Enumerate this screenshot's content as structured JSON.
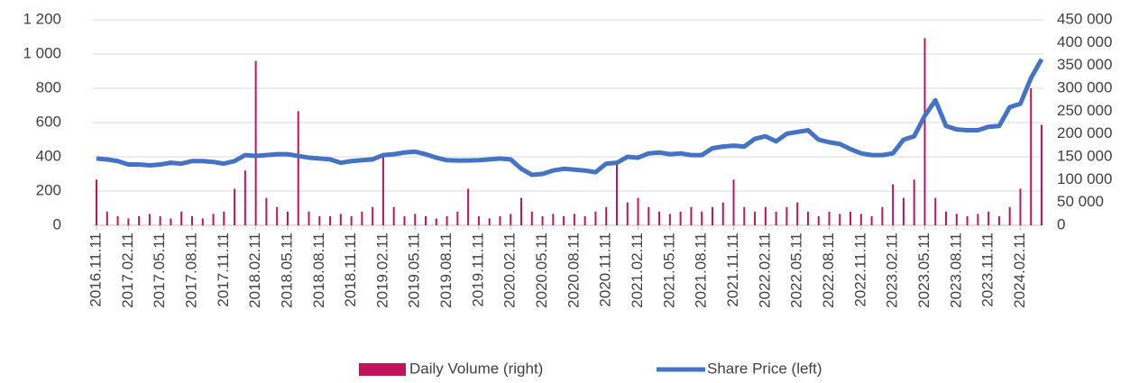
{
  "chart_data": {
    "type": "bar_line",
    "categories": [
      "2016.11.11",
      null,
      null,
      "2017.02.11",
      null,
      null,
      "2017.05.11",
      null,
      null,
      "2017.08.11",
      null,
      null,
      "2017.11.11",
      null,
      null,
      "2018.02.11",
      null,
      null,
      "2018.05.11",
      null,
      null,
      "2018.08.11",
      null,
      null,
      "2018.11.11",
      null,
      null,
      "2019.02.11",
      null,
      null,
      "2019.05.11",
      null,
      null,
      "2019.08.11",
      null,
      null,
      "2019.11.11",
      null,
      null,
      "2020.02.11",
      null,
      null,
      "2020.05.11",
      null,
      null,
      "2020.08.11",
      null,
      null,
      "2020.11.11",
      null,
      null,
      "2021.02.11",
      null,
      null,
      "2021.05.11",
      null,
      null,
      "2021.08.11",
      null,
      null,
      "2021.11.11",
      null,
      null,
      "2022.02.11",
      null,
      null,
      "2022.05.11",
      null,
      null,
      "2022.08.11",
      null,
      null,
      "2022.11.11",
      null,
      null,
      "2023.02.11",
      null,
      null,
      "2023.05.11",
      null,
      null,
      "2023.08.11",
      null,
      null,
      "2023.11.11",
      null,
      null,
      "2024.02.11",
      null,
      null
    ],
    "series": [
      {
        "name": "Daily Volume (right)",
        "type": "bar",
        "axis": "y2",
        "color": "#c0145a",
        "values": [
          100000,
          30000,
          20000,
          15000,
          20000,
          25000,
          20000,
          15000,
          30000,
          20000,
          15000,
          25000,
          30000,
          80000,
          120000,
          360000,
          60000,
          40000,
          30000,
          250000,
          30000,
          20000,
          20000,
          25000,
          20000,
          30000,
          40000,
          150000,
          40000,
          20000,
          25000,
          20000,
          15000,
          20000,
          30000,
          80000,
          20000,
          15000,
          20000,
          25000,
          60000,
          30000,
          20000,
          25000,
          20000,
          25000,
          20000,
          30000,
          40000,
          140000,
          50000,
          60000,
          40000,
          30000,
          25000,
          30000,
          40000,
          30000,
          40000,
          50000,
          100000,
          40000,
          30000,
          40000,
          30000,
          40000,
          50000,
          30000,
          20000,
          30000,
          25000,
          30000,
          25000,
          20000,
          40000,
          90000,
          60000,
          100000,
          410000,
          60000,
          30000,
          25000,
          20000,
          25000,
          30000,
          20000,
          40000,
          80000,
          300000,
          220000
        ]
      },
      {
        "name": "Share Price (left)",
        "type": "line",
        "color": "#4472c4",
        "values": [
          390,
          385,
          375,
          355,
          355,
          350,
          355,
          365,
          360,
          375,
          375,
          370,
          360,
          375,
          410,
          405,
          410,
          415,
          415,
          405,
          395,
          390,
          385,
          365,
          375,
          380,
          385,
          410,
          415,
          425,
          430,
          415,
          395,
          380,
          378,
          378,
          380,
          385,
          390,
          385,
          330,
          295,
          300,
          320,
          330,
          325,
          320,
          310,
          360,
          365,
          400,
          395,
          420,
          425,
          415,
          420,
          410,
          410,
          450,
          460,
          465,
          460,
          505,
          520,
          490,
          535,
          545,
          555,
          500,
          485,
          475,
          445,
          420,
          410,
          410,
          420,
          500,
          520,
          640,
          730,
          580,
          560,
          555,
          555,
          575,
          580,
          690,
          710,
          860,
          970
        ]
      }
    ],
    "ylim": [
      0,
      1200
    ],
    "yticks": [
      0,
      200,
      400,
      600,
      800,
      {
        "value": 1000,
        "label": "1 000"
      },
      {
        "value": 1200,
        "label": "1 200"
      }
    ],
    "y2lim": [
      0,
      450000
    ],
    "y2ticks": [
      {
        "value": 0,
        "label": "0"
      },
      {
        "value": 50000,
        "label": "50 000"
      },
      {
        "value": 100000,
        "label": "100 000"
      },
      {
        "value": 150000,
        "label": "150 000"
      },
      {
        "value": 200000,
        "label": "200 000"
      },
      {
        "value": 250000,
        "label": "250 000"
      },
      {
        "value": 300000,
        "label": "300 000"
      },
      {
        "value": 350000,
        "label": "350 000"
      },
      {
        "value": 400000,
        "label": "400 000"
      },
      {
        "value": 450000,
        "label": "450 000"
      }
    ],
    "grid": true,
    "legend": "bottom"
  }
}
